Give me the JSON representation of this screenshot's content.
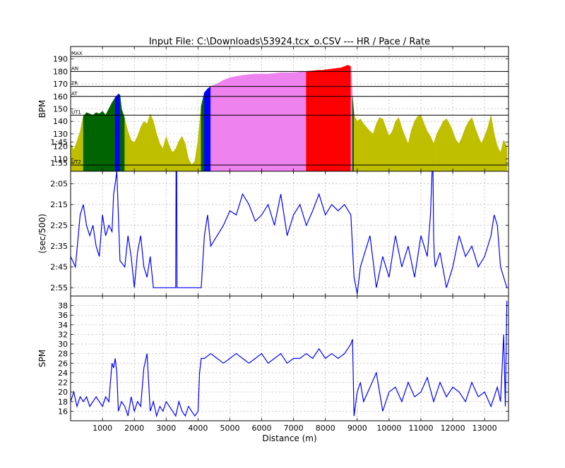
{
  "figure": {
    "title": "Input File:  C:\\Downloads\\53924.tcx_o.CSV --- HR / Pace / Rate",
    "xlabel": "Distance (m)"
  },
  "colors": {
    "ut2": "#bfbf00",
    "ut1": "#006400",
    "at": "#0000ff",
    "tr": "#ee82ee",
    "an": "#ff0000",
    "line": "#0000ff"
  },
  "chart_data": [
    {
      "type": "area",
      "name": "hr",
      "ylabel": "BPM",
      "xlim": [
        0,
        13750
      ],
      "ylim": [
        100,
        200
      ],
      "yticks": [
        110,
        120,
        130,
        140,
        150,
        160,
        170,
        180,
        190
      ],
      "zone_lines": [
        {
          "label": "MAX",
          "value": 192
        },
        {
          "label": "AN",
          "value": 180
        },
        {
          "label": "TR",
          "value": 168
        },
        {
          "label": "AT",
          "value": 160
        },
        {
          "label": "UT1",
          "value": 145
        },
        {
          "label": "UT2",
          "value": 105
        }
      ],
      "x": [
        0,
        100,
        200,
        300,
        400,
        500,
        600,
        700,
        800,
        900,
        1000,
        1100,
        1200,
        1300,
        1400,
        1500,
        1550,
        1600,
        1700,
        1800,
        1900,
        2000,
        2100,
        2200,
        2300,
        2400,
        2500,
        2600,
        2700,
        2800,
        2900,
        3000,
        3100,
        3200,
        3300,
        3400,
        3500,
        3600,
        3700,
        3800,
        3900,
        4000,
        4100,
        4200,
        4300,
        4400,
        4600,
        4800,
        5000,
        5400,
        5800,
        6200,
        6600,
        7000,
        7400,
        7800,
        7900,
        8200,
        8500,
        8700,
        8800,
        8850,
        8900,
        9000,
        9100,
        9200,
        9300,
        9400,
        9500,
        9600,
        9700,
        9800,
        9900,
        10000,
        10100,
        10200,
        10300,
        10400,
        10500,
        10600,
        10700,
        10800,
        10900,
        11000,
        11100,
        11200,
        11300,
        11400,
        11500,
        11600,
        11700,
        11800,
        11900,
        12000,
        12100,
        12200,
        12300,
        12400,
        12500,
        12600,
        12700,
        12800,
        12900,
        13000,
        13100,
        13200,
        13300,
        13400,
        13500,
        13600,
        13700
      ],
      "hr": [
        122,
        117,
        124,
        132,
        144,
        147,
        146,
        145,
        147,
        146,
        148,
        145,
        150,
        155,
        159,
        162,
        161,
        150,
        142,
        132,
        125,
        123,
        128,
        135,
        140,
        138,
        146,
        140,
        130,
        122,
        118,
        128,
        120,
        115,
        118,
        124,
        128,
        122,
        110,
        105,
        108,
        125,
        152,
        163,
        166,
        168,
        170,
        173,
        175,
        177,
        178,
        178,
        179,
        179,
        180,
        181,
        181,
        182,
        183,
        185,
        184,
        160,
        145,
        140,
        142,
        138,
        135,
        132,
        130,
        138,
        143,
        142,
        135,
        128,
        132,
        140,
        143,
        135,
        128,
        122,
        133,
        140,
        144,
        145,
        138,
        132,
        128,
        122,
        130,
        135,
        140,
        142,
        138,
        132,
        125,
        122,
        128,
        135,
        140,
        143,
        135,
        128,
        122,
        128,
        135,
        145,
        130,
        120,
        115,
        125,
        120
      ]
    },
    {
      "type": "line",
      "name": "pace",
      "ylabel": "(sec/500)",
      "ylim": [
        179,
        119
      ],
      "yticks": [
        "1:45",
        "1:55",
        "2:05",
        "2:15",
        "2:25",
        "2:35",
        "2:45",
        "2:55"
      ],
      "ytick_values": [
        105,
        115,
        125,
        135,
        145,
        155,
        165,
        175
      ],
      "x": [
        0,
        150,
        300,
        400,
        500,
        600,
        700,
        800,
        900,
        1000,
        1100,
        1200,
        1300,
        1350,
        1400,
        1450,
        1500,
        1550,
        1700,
        1800,
        1900,
        2000,
        2100,
        2200,
        2300,
        2400,
        2500,
        2600,
        3200,
        3300,
        3310,
        3330,
        3340,
        3350,
        3360,
        4000,
        4100,
        4200,
        4300,
        4400,
        4600,
        4800,
        5000,
        5200,
        5400,
        5600,
        5800,
        6000,
        6200,
        6400,
        6600,
        6800,
        7000,
        7200,
        7400,
        7600,
        7800,
        8000,
        8200,
        8400,
        8600,
        8800,
        8900,
        9000,
        9100,
        9200,
        9400,
        9600,
        9800,
        10000,
        10200,
        10400,
        10600,
        10800,
        11000,
        11200,
        11300,
        11350,
        11380,
        11400,
        11420,
        11450,
        11600,
        11800,
        12000,
        12200,
        12400,
        12600,
        12800,
        13000,
        13200,
        13300,
        13400,
        13500,
        13600,
        13700
      ],
      "sec_per_500": [
        160,
        165,
        140,
        135,
        145,
        150,
        145,
        155,
        160,
        140,
        150,
        145,
        148,
        130,
        125,
        118,
        140,
        162,
        165,
        150,
        160,
        175,
        158,
        150,
        165,
        170,
        160,
        175,
        175,
        175,
        82,
        82,
        175,
        175,
        175,
        175,
        175,
        150,
        140,
        155,
        150,
        145,
        138,
        140,
        130,
        135,
        143,
        140,
        135,
        145,
        130,
        150,
        140,
        135,
        145,
        138,
        130,
        140,
        135,
        138,
        135,
        140,
        170,
        178,
        165,
        160,
        150,
        175,
        160,
        170,
        150,
        165,
        155,
        170,
        150,
        160,
        140,
        82,
        82,
        150,
        160,
        165,
        158,
        175,
        165,
        150,
        160,
        155,
        165,
        160,
        150,
        140,
        145,
        165,
        170,
        175
      ]
    },
    {
      "type": "line",
      "name": "rate",
      "ylabel": "SPM",
      "ylim": [
        14,
        40
      ],
      "yticks": [
        16,
        18,
        20,
        22,
        24,
        26,
        28,
        30,
        32,
        34,
        36,
        38
      ],
      "x": [
        0,
        100,
        200,
        300,
        400,
        500,
        600,
        700,
        800,
        900,
        1000,
        1100,
        1200,
        1300,
        1350,
        1400,
        1450,
        1500,
        1600,
        1700,
        1800,
        1900,
        2000,
        2100,
        2200,
        2300,
        2400,
        2500,
        2600,
        2700,
        2800,
        2900,
        3000,
        3100,
        3200,
        3300,
        3400,
        3500,
        3600,
        3700,
        3800,
        3900,
        4000,
        4050,
        4100,
        4200,
        4400,
        4600,
        4800,
        5000,
        5200,
        5400,
        5600,
        5800,
        6000,
        6200,
        6400,
        6600,
        6800,
        7000,
        7200,
        7400,
        7600,
        7800,
        8000,
        8200,
        8400,
        8600,
        8700,
        8800,
        8850,
        8900,
        9000,
        9100,
        9200,
        9400,
        9600,
        9800,
        10000,
        10200,
        10400,
        10600,
        10800,
        11000,
        11200,
        11400,
        11600,
        11800,
        12000,
        12200,
        12400,
        12600,
        12800,
        13000,
        13200,
        13400,
        13500,
        13600,
        13650,
        13700
      ],
      "spm": [
        18,
        20,
        17,
        19,
        18,
        19,
        17,
        18,
        19,
        18,
        17,
        19,
        18,
        26,
        25,
        27,
        24,
        16,
        18,
        17,
        15,
        19,
        16,
        18,
        17,
        25,
        28,
        16,
        18,
        15,
        17,
        16,
        18,
        17,
        16,
        15,
        18,
        16,
        15,
        17,
        16,
        15,
        16,
        24,
        27,
        27,
        28,
        27,
        26,
        27,
        28,
        27,
        26,
        27,
        28,
        26,
        27,
        28,
        26,
        27,
        27,
        28,
        27,
        29,
        27,
        28,
        27,
        28,
        29,
        30,
        31,
        15,
        20,
        22,
        18,
        21,
        24,
        16,
        20,
        21,
        18,
        22,
        19,
        20,
        23,
        18,
        22,
        19,
        21,
        20,
        18,
        22,
        19,
        20,
        17,
        21,
        18,
        32,
        17,
        39
      ]
    }
  ]
}
